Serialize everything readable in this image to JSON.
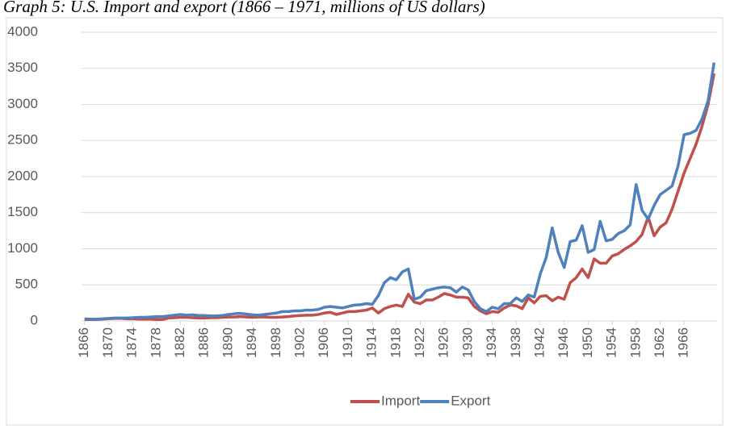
{
  "chart_data": {
    "type": "line",
    "title": "Graph 5: U.S. Import and export (1866 – 1971, millions of US dollars)",
    "x": [
      1866,
      1867,
      1868,
      1869,
      1870,
      1871,
      1872,
      1873,
      1874,
      1875,
      1876,
      1877,
      1878,
      1879,
      1880,
      1881,
      1882,
      1883,
      1884,
      1885,
      1886,
      1887,
      1888,
      1889,
      1890,
      1891,
      1892,
      1893,
      1894,
      1895,
      1896,
      1897,
      1898,
      1899,
      1900,
      1901,
      1902,
      1903,
      1904,
      1905,
      1906,
      1907,
      1908,
      1909,
      1910,
      1911,
      1912,
      1913,
      1914,
      1915,
      1916,
      1917,
      1918,
      1919,
      1920,
      1921,
      1922,
      1923,
      1924,
      1925,
      1926,
      1927,
      1928,
      1929,
      1930,
      1931,
      1932,
      1933,
      1934,
      1935,
      1936,
      1937,
      1938,
      1939,
      1940,
      1941,
      1942,
      1943,
      1944,
      1945,
      1946,
      1947,
      1948,
      1949,
      1950,
      1951,
      1952,
      1953,
      1954,
      1955,
      1956,
      1957,
      1958,
      1959,
      1960,
      1961,
      1962,
      1963,
      1964,
      1965,
      1966,
      1967,
      1968,
      1969,
      1970,
      1971
    ],
    "series": [
      {
        "name": "Import",
        "color": "#c0504d",
        "values": [
          20,
          20,
          20,
          25,
          30,
          35,
          35,
          30,
          30,
          25,
          25,
          25,
          20,
          20,
          40,
          45,
          50,
          50,
          45,
          40,
          40,
          45,
          45,
          50,
          55,
          55,
          60,
          55,
          50,
          55,
          55,
          50,
          50,
          55,
          60,
          70,
          75,
          80,
          80,
          90,
          110,
          120,
          90,
          110,
          130,
          130,
          140,
          150,
          180,
          110,
          170,
          200,
          220,
          200,
          370,
          260,
          240,
          290,
          290,
          330,
          380,
          360,
          330,
          330,
          320,
          200,
          140,
          100,
          130,
          120,
          180,
          220,
          210,
          170,
          320,
          250,
          340,
          350,
          280,
          330,
          300,
          530,
          600,
          720,
          600,
          860,
          800,
          800,
          900,
          930,
          990,
          1040,
          1100,
          1200,
          1440,
          1180,
          1300,
          1360,
          1550,
          1800,
          2050,
          2250,
          2450,
          2700,
          3000,
          3430
        ]
      },
      {
        "name": "Export",
        "color": "#4f81bd",
        "values": [
          30,
          25,
          25,
          30,
          35,
          40,
          40,
          40,
          45,
          50,
          50,
          55,
          60,
          60,
          70,
          80,
          90,
          80,
          85,
          75,
          75,
          70,
          70,
          75,
          90,
          100,
          105,
          95,
          85,
          80,
          90,
          100,
          110,
          130,
          130,
          140,
          140,
          150,
          150,
          160,
          190,
          200,
          190,
          180,
          200,
          220,
          225,
          240,
          230,
          350,
          530,
          600,
          570,
          680,
          720,
          300,
          330,
          420,
          440,
          460,
          470,
          460,
          400,
          470,
          430,
          270,
          170,
          130,
          190,
          170,
          240,
          240,
          320,
          270,
          360,
          330,
          650,
          880,
          1290,
          950,
          740,
          1100,
          1120,
          1320,
          950,
          990,
          1380,
          1110,
          1130,
          1210,
          1250,
          1330,
          1890,
          1530,
          1410,
          1600,
          1750,
          1810,
          1870,
          2150,
          2580,
          2600,
          2640,
          2800,
          3050,
          3580
        ]
      }
    ],
    "xlim": [
      1865.5,
      1971.5
    ],
    "xticks": [
      1866,
      1870,
      1874,
      1878,
      1882,
      1886,
      1890,
      1894,
      1898,
      1902,
      1906,
      1910,
      1914,
      1918,
      1922,
      1926,
      1930,
      1934,
      1938,
      1942,
      1946,
      1950,
      1954,
      1958,
      1962,
      1966
    ],
    "ylim": [
      0,
      4000
    ],
    "yticks": [
      0,
      500,
      1000,
      1500,
      2000,
      2500,
      3000,
      3500,
      4000
    ],
    "grid": true,
    "legend": "bottom"
  }
}
